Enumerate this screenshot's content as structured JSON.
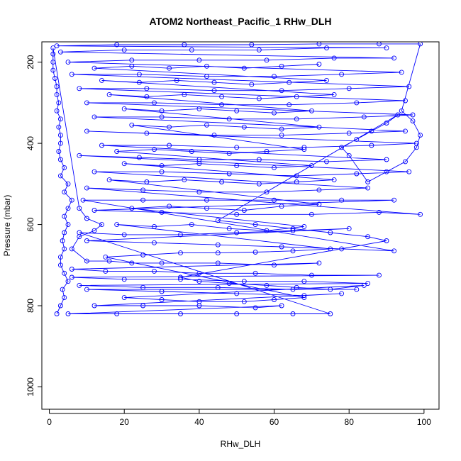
{
  "chart_data": {
    "type": "scatter",
    "title": "ATOM2 Northeast_Pacific_1 RHw_DLH",
    "xlabel": "RHw_DLH",
    "ylabel": "Pressure (mbar)",
    "xlim": [
      -2,
      104
    ],
    "ylim": [
      1055,
      150
    ],
    "y_reversed": true,
    "grid": false,
    "legend": "none",
    "x_ticks": [
      0,
      20,
      40,
      60,
      80,
      100
    ],
    "y_ticks": [
      200,
      400,
      600,
      800,
      1000
    ],
    "series": [
      {
        "marker": "open-circle",
        "line": true,
        "color": "#0000ff",
        "points": [
          [
            2,
            820
          ],
          [
            3,
            800
          ],
          [
            4,
            780
          ],
          [
            3.5,
            760
          ],
          [
            5,
            740
          ],
          [
            4,
            720
          ],
          [
            3,
            700
          ],
          [
            3,
            680
          ],
          [
            4,
            660
          ],
          [
            3.5,
            640
          ],
          [
            4,
            620
          ],
          [
            5,
            600
          ],
          [
            4,
            580
          ],
          [
            5,
            560
          ],
          [
            6,
            540
          ],
          [
            4,
            520
          ],
          [
            5,
            500
          ],
          [
            3,
            480
          ],
          [
            4,
            460
          ],
          [
            3,
            440
          ],
          [
            2.5,
            420
          ],
          [
            3,
            400
          ],
          [
            3,
            380
          ],
          [
            2.5,
            360
          ],
          [
            3,
            340
          ],
          [
            2,
            320
          ],
          [
            2.5,
            300
          ],
          [
            2,
            280
          ],
          [
            2,
            260
          ],
          [
            1.5,
            240
          ],
          [
            1,
            220
          ],
          [
            1,
            200
          ],
          [
            1,
            180
          ],
          [
            1,
            165
          ],
          [
            8,
            560
          ],
          [
            10,
            585
          ],
          [
            14,
            600
          ],
          [
            12,
            615
          ],
          [
            8,
            630
          ],
          [
            6,
            660
          ],
          [
            10,
            690
          ],
          [
            16,
            690
          ],
          [
            22,
            695
          ],
          [
            30,
            695
          ],
          [
            45,
            695
          ],
          [
            60,
            700
          ],
          [
            72,
            695
          ],
          [
            6,
            710
          ],
          [
            15,
            715
          ],
          [
            28,
            715
          ],
          [
            40,
            720
          ],
          [
            55,
            720
          ],
          [
            70,
            725
          ],
          [
            88,
            725
          ],
          [
            6,
            730
          ],
          [
            20,
            735
          ],
          [
            35,
            735
          ],
          [
            52,
            740
          ],
          [
            68,
            740
          ],
          [
            85,
            745
          ],
          [
            8,
            750
          ],
          [
            25,
            755
          ],
          [
            45,
            755
          ],
          [
            65,
            760
          ],
          [
            82,
            760
          ],
          [
            10,
            760
          ],
          [
            30,
            765
          ],
          [
            50,
            770
          ],
          [
            68,
            775
          ],
          [
            78,
            770
          ],
          [
            12,
            800
          ],
          [
            25,
            800
          ],
          [
            40,
            800
          ],
          [
            55,
            805
          ],
          [
            62,
            800
          ],
          [
            5,
            820
          ],
          [
            18,
            820
          ],
          [
            35,
            820
          ],
          [
            50,
            820
          ],
          [
            65,
            820
          ],
          [
            75,
            820
          ],
          [
            8,
            620
          ],
          [
            20,
            625
          ],
          [
            35,
            625
          ],
          [
            50,
            620
          ],
          [
            65,
            615
          ],
          [
            80,
            610
          ],
          [
            10,
            640
          ],
          [
            28,
            645
          ],
          [
            45,
            650
          ],
          [
            62,
            655
          ],
          [
            78,
            660
          ],
          [
            92,
            665
          ],
          [
            9,
            540
          ],
          [
            25,
            540
          ],
          [
            42,
            540
          ],
          [
            60,
            540
          ],
          [
            78,
            540
          ],
          [
            92,
            540
          ],
          [
            12,
            565
          ],
          [
            30,
            570
          ],
          [
            50,
            575
          ],
          [
            70,
            575
          ],
          [
            88,
            570
          ],
          [
            99,
            575
          ],
          [
            10,
            510
          ],
          [
            25,
            515
          ],
          [
            40,
            520
          ],
          [
            58,
            520
          ],
          [
            72,
            515
          ],
          [
            85,
            510
          ],
          [
            12,
            470
          ],
          [
            30,
            470
          ],
          [
            48,
            475
          ],
          [
            66,
            480
          ],
          [
            82,
            475
          ],
          [
            96,
            470
          ],
          [
            8,
            430
          ],
          [
            24,
            435
          ],
          [
            40,
            440
          ],
          [
            56,
            440
          ],
          [
            74,
            445
          ],
          [
            90,
            440
          ],
          [
            14,
            405
          ],
          [
            32,
            405
          ],
          [
            50,
            410
          ],
          [
            68,
            410
          ],
          [
            86,
            405
          ],
          [
            98,
            400
          ],
          [
            10,
            370
          ],
          [
            26,
            375
          ],
          [
            44,
            380
          ],
          [
            62,
            380
          ],
          [
            80,
            375
          ],
          [
            95,
            370
          ],
          [
            12,
            335
          ],
          [
            30,
            335
          ],
          [
            48,
            340
          ],
          [
            66,
            340
          ],
          [
            84,
            335
          ],
          [
            97,
            330
          ],
          [
            10,
            300
          ],
          [
            28,
            300
          ],
          [
            46,
            305
          ],
          [
            64,
            305
          ],
          [
            82,
            300
          ],
          [
            95,
            295
          ],
          [
            8,
            265
          ],
          [
            26,
            265
          ],
          [
            44,
            270
          ],
          [
            62,
            270
          ],
          [
            80,
            265
          ],
          [
            96,
            260
          ],
          [
            6,
            230
          ],
          [
            24,
            230
          ],
          [
            42,
            235
          ],
          [
            60,
            235
          ],
          [
            78,
            230
          ],
          [
            94,
            225
          ],
          [
            5,
            200
          ],
          [
            22,
            195
          ],
          [
            40,
            195
          ],
          [
            58,
            195
          ],
          [
            76,
            190
          ],
          [
            92,
            190
          ],
          [
            3,
            175
          ],
          [
            20,
            170
          ],
          [
            38,
            170
          ],
          [
            56,
            170
          ],
          [
            74,
            165
          ],
          [
            90,
            165
          ],
          [
            2,
            160
          ],
          [
            18,
            157
          ],
          [
            36,
            157
          ],
          [
            54,
            157
          ],
          [
            72,
            155
          ],
          [
            88,
            155
          ],
          [
            99,
            155
          ],
          [
            94,
            320
          ],
          [
            97,
            345
          ],
          [
            99,
            380
          ],
          [
            98,
            410
          ],
          [
            95,
            445
          ],
          [
            90,
            470
          ],
          [
            85,
            495
          ],
          [
            80,
            430
          ],
          [
            78,
            410
          ],
          [
            82,
            390
          ],
          [
            86,
            370
          ],
          [
            90,
            350
          ],
          [
            93,
            330
          ],
          [
            45,
            590
          ],
          [
            55,
            600
          ],
          [
            65,
            610
          ],
          [
            75,
            620
          ],
          [
            85,
            630
          ],
          [
            90,
            640
          ],
          [
            35,
            730
          ],
          [
            40,
            740
          ],
          [
            48,
            745
          ],
          [
            58,
            750
          ],
          [
            66,
            755
          ],
          [
            75,
            760
          ],
          [
            84,
            750
          ],
          [
            20,
            780
          ],
          [
            30,
            785
          ],
          [
            40,
            790
          ],
          [
            52,
            790
          ],
          [
            60,
            785
          ],
          [
            68,
            780
          ],
          [
            15,
            680
          ],
          [
            25,
            675
          ],
          [
            35,
            670
          ],
          [
            45,
            670
          ],
          [
            55,
            668
          ],
          [
            65,
            665
          ],
          [
            75,
            660
          ],
          [
            18,
            600
          ],
          [
            28,
            605
          ],
          [
            38,
            600
          ],
          [
            48,
            610
          ],
          [
            58,
            615
          ],
          [
            68,
            605
          ],
          [
            22,
            560
          ],
          [
            32,
            555
          ],
          [
            42,
            560
          ],
          [
            52,
            565
          ],
          [
            62,
            555
          ],
          [
            72,
            550
          ],
          [
            16,
            490
          ],
          [
            26,
            495
          ],
          [
            36,
            490
          ],
          [
            46,
            495
          ],
          [
            56,
            500
          ],
          [
            66,
            495
          ],
          [
            76,
            490
          ],
          [
            20,
            450
          ],
          [
            30,
            455
          ],
          [
            40,
            450
          ],
          [
            50,
            455
          ],
          [
            60,
            460
          ],
          [
            70,
            455
          ],
          [
            18,
            420
          ],
          [
            28,
            415
          ],
          [
            38,
            420
          ],
          [
            48,
            425
          ],
          [
            58,
            420
          ],
          [
            68,
            415
          ],
          [
            22,
            355
          ],
          [
            32,
            360
          ],
          [
            42,
            355
          ],
          [
            52,
            360
          ],
          [
            62,
            365
          ],
          [
            72,
            360
          ],
          [
            20,
            315
          ],
          [
            30,
            320
          ],
          [
            40,
            315
          ],
          [
            50,
            320
          ],
          [
            60,
            325
          ],
          [
            70,
            320
          ],
          [
            16,
            280
          ],
          [
            26,
            285
          ],
          [
            36,
            280
          ],
          [
            46,
            285
          ],
          [
            56,
            290
          ],
          [
            66,
            285
          ],
          [
            76,
            280
          ],
          [
            14,
            245
          ],
          [
            24,
            250
          ],
          [
            34,
            245
          ],
          [
            44,
            250
          ],
          [
            54,
            255
          ],
          [
            64,
            250
          ],
          [
            74,
            245
          ],
          [
            12,
            215
          ],
          [
            22,
            210
          ],
          [
            32,
            215
          ],
          [
            42,
            210
          ],
          [
            52,
            215
          ],
          [
            62,
            210
          ],
          [
            72,
            205
          ]
        ]
      }
    ]
  }
}
